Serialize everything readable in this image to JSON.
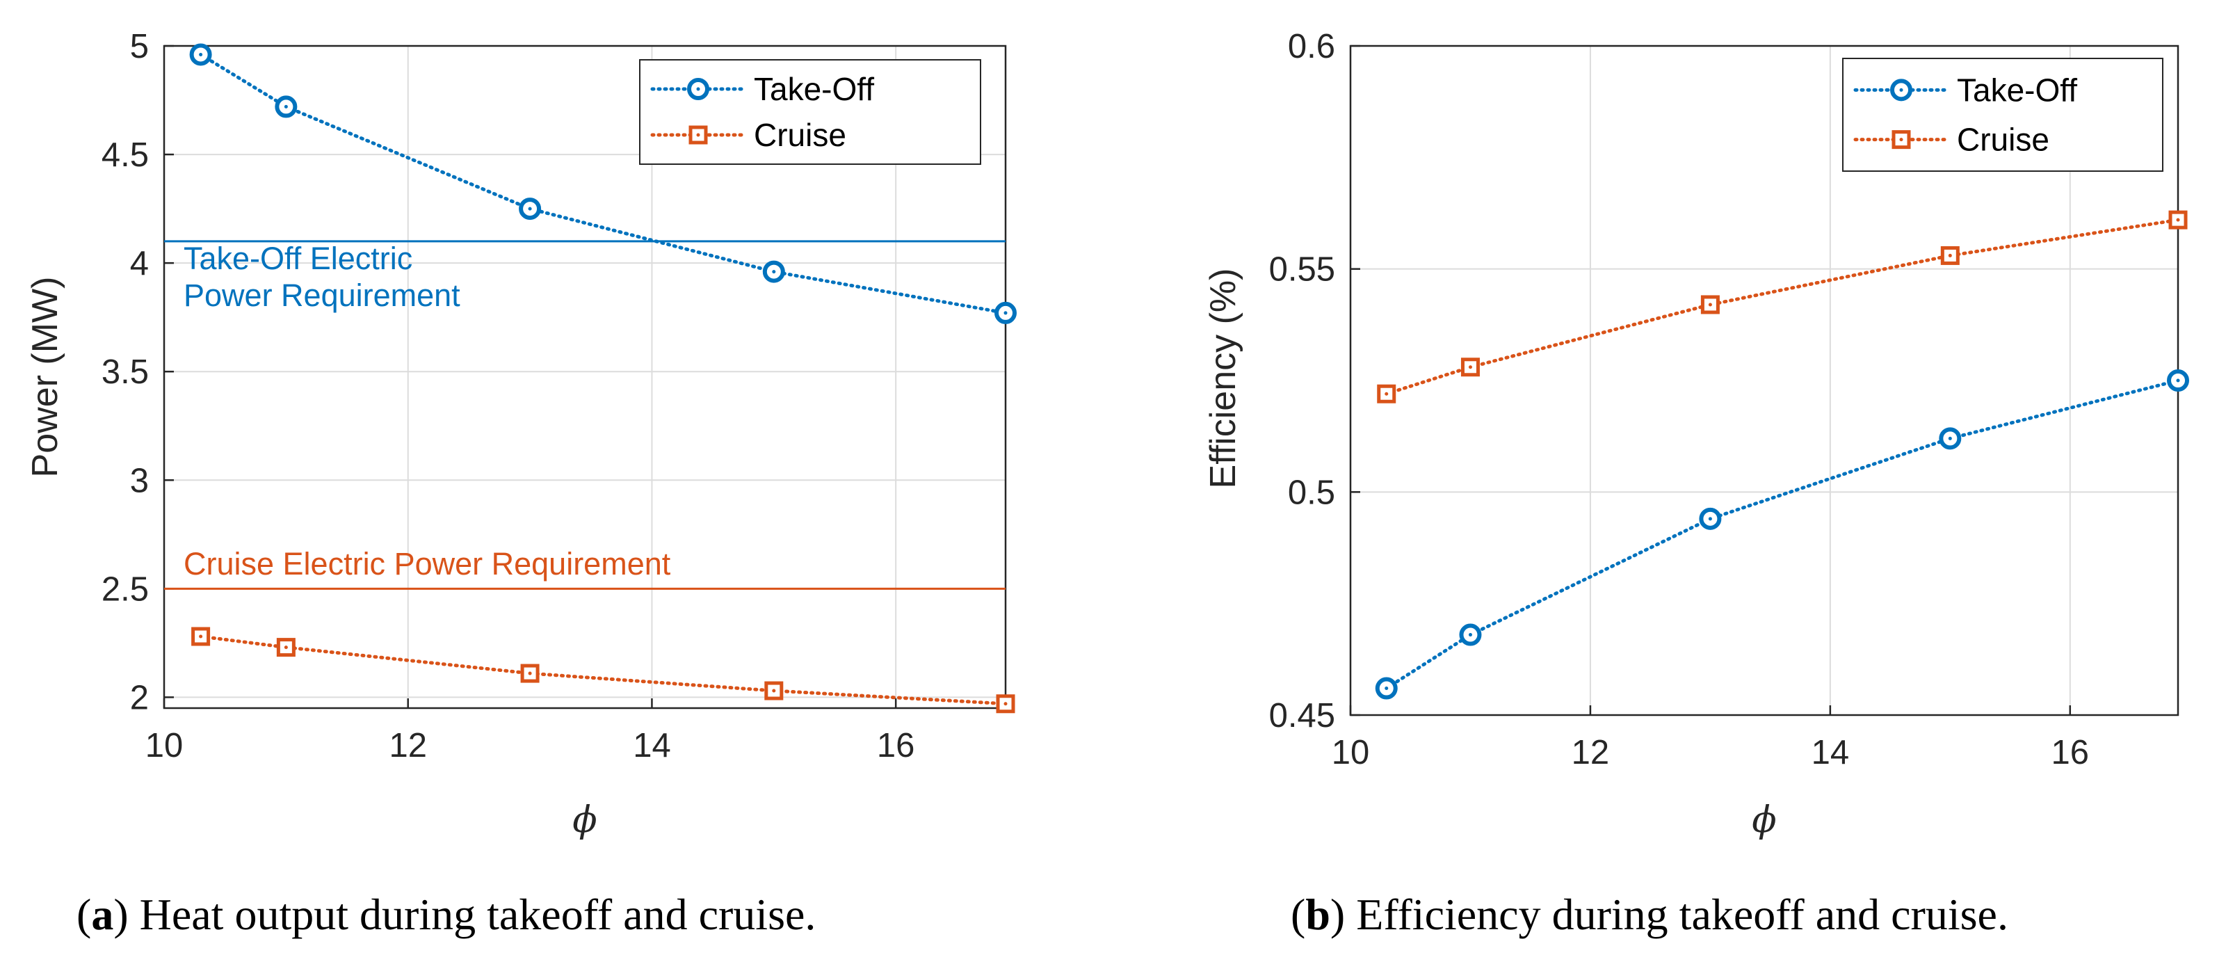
{
  "figure": {
    "colors": {
      "takeoff": "#0072BD",
      "cruise": "#D95319",
      "axis": "#262626",
      "grid": "#dcdcdc"
    },
    "captions": {
      "a": {
        "label": "a",
        "open": "(",
        "close": ")",
        "text": " Heat output during takeoff and cruise."
      },
      "b": {
        "label": "b",
        "open": "(",
        "close": ")",
        "text": " Efficiency during takeoff and cruise."
      }
    }
  },
  "chart_data": [
    {
      "type": "line",
      "title": "",
      "xlabel": "ϕ",
      "ylabel": "Power (MW)",
      "xlim": [
        10,
        16.9
      ],
      "ylim": [
        1.95,
        5
      ],
      "x_ticks": [
        10,
        12,
        14,
        16
      ],
      "x_tick_labels": [
        "10",
        "12",
        "14",
        "16"
      ],
      "y_ticks": [
        2,
        2.5,
        3,
        3.5,
        4,
        4.5,
        5
      ],
      "y_tick_labels": [
        "2",
        "2.5",
        "3",
        "3.5",
        "4",
        "4.5",
        "5"
      ],
      "grid": true,
      "legend_position": "top-right",
      "series": [
        {
          "name": "Take-Off",
          "marker": "circle",
          "color": "#0072BD",
          "x": [
            10.3,
            11,
            13,
            15,
            16.9
          ],
          "y": [
            4.96,
            4.72,
            4.25,
            3.96,
            3.77
          ]
        },
        {
          "name": "Cruise",
          "marker": "square",
          "color": "#D95319",
          "x": [
            10.3,
            11,
            13,
            15,
            16.9
          ],
          "y": [
            2.28,
            2.23,
            2.11,
            2.03,
            1.97
          ]
        }
      ],
      "reference_lines": [
        {
          "y": 4.1,
          "color": "#0072BD",
          "label_lines": [
            "Take-Off Electric",
            "Power Requirement"
          ]
        },
        {
          "y": 2.5,
          "color": "#D95319",
          "label_lines": [
            "Cruise Electric Power Requirement"
          ]
        }
      ]
    },
    {
      "type": "line",
      "title": "",
      "xlabel": "ϕ",
      "ylabel": "Efficiency (%)",
      "xlim": [
        10,
        16.9
      ],
      "ylim": [
        0.45,
        0.6
      ],
      "x_ticks": [
        10,
        12,
        14,
        16
      ],
      "x_tick_labels": [
        "10",
        "12",
        "14",
        "16"
      ],
      "y_ticks": [
        0.45,
        0.5,
        0.55,
        0.6
      ],
      "y_tick_labels": [
        "0.45",
        "0.5",
        "0.55",
        "0.6"
      ],
      "grid": true,
      "legend_position": "top-right",
      "series": [
        {
          "name": "Take-Off",
          "marker": "circle",
          "color": "#0072BD",
          "x": [
            10.3,
            11,
            13,
            15,
            16.9
          ],
          "y": [
            0.456,
            0.468,
            0.494,
            0.512,
            0.525
          ]
        },
        {
          "name": "Cruise",
          "marker": "square",
          "color": "#D95319",
          "x": [
            10.3,
            11,
            13,
            15,
            16.9
          ],
          "y": [
            0.522,
            0.528,
            0.542,
            0.553,
            0.561
          ]
        }
      ],
      "reference_lines": []
    }
  ]
}
